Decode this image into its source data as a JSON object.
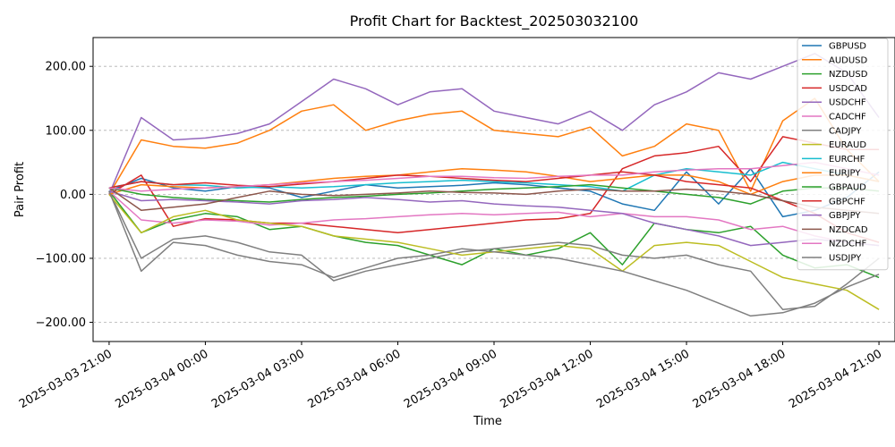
{
  "chart_data": {
    "type": "line",
    "title": "Profit Chart for Backtest_202503032100",
    "xlabel": "Time",
    "ylabel": "Pair Profit",
    "x_range_hours": [
      -0.5,
      24.5
    ],
    "ylim": [
      -230,
      245
    ],
    "yticks": [
      -200,
      -100,
      0,
      100,
      200
    ],
    "ytick_labels": [
      "−200.00",
      "−100.00",
      "0.00",
      "100.00",
      "200.00"
    ],
    "xticks_hours": [
      0,
      3,
      6,
      9,
      12,
      15,
      18,
      21,
      24
    ],
    "xtick_labels": [
      "2025-03-03 21:00",
      "2025-03-04 00:00",
      "2025-03-04 03:00",
      "2025-03-04 06:00",
      "2025-03-04 09:00",
      "2025-03-04 12:00",
      "2025-03-04 15:00",
      "2025-03-04 18:00",
      "2025-03-04 21:00"
    ],
    "grid": "horizontal dashed",
    "legend_position": "top-right",
    "x_hours": [
      0,
      1,
      2,
      3,
      4,
      5,
      6,
      7,
      8,
      9,
      10,
      11,
      12,
      13,
      14,
      15,
      16,
      17,
      18,
      19,
      20,
      21,
      22,
      23,
      24
    ],
    "series": [
      {
        "name": "GBPUSD",
        "color": "#1f77b4",
        "values": [
          5,
          25,
          10,
          5,
          12,
          10,
          -5,
          5,
          15,
          10,
          12,
          14,
          18,
          15,
          10,
          5,
          -15,
          -25,
          35,
          -15,
          40,
          -35,
          -25,
          -5,
          35
        ]
      },
      {
        "name": "AUDUSD",
        "color": "#ff7f0e",
        "values": [
          0,
          85,
          75,
          72,
          80,
          100,
          130,
          140,
          100,
          115,
          125,
          130,
          100,
          95,
          90,
          105,
          60,
          75,
          110,
          100,
          5,
          115,
          150,
          70,
          20
        ]
      },
      {
        "name": "NZDUSD",
        "color": "#2ca02c",
        "values": [
          5,
          -60,
          -40,
          -30,
          -35,
          -55,
          -50,
          -65,
          -75,
          -80,
          -95,
          -110,
          -85,
          -95,
          -85,
          -60,
          -110,
          -45,
          -55,
          -60,
          -50,
          -95,
          -115,
          -110,
          -130
        ]
      },
      {
        "name": "USDCAD",
        "color": "#d62728",
        "values": [
          0,
          30,
          -50,
          -38,
          -40,
          -45,
          -45,
          -50,
          -55,
          -60,
          -55,
          -50,
          -45,
          -40,
          -38,
          -30,
          40,
          60,
          65,
          75,
          20,
          90,
          80,
          70,
          70
        ]
      },
      {
        "name": "USDCHF",
        "color": "#9467bd",
        "values": [
          0,
          120,
          85,
          88,
          95,
          110,
          145,
          180,
          165,
          140,
          160,
          165,
          130,
          120,
          110,
          130,
          100,
          140,
          160,
          190,
          180,
          200,
          220,
          190,
          120
        ]
      },
      {
        "name": "CADCHF",
        "color": "#e377c2",
        "values": [
          5,
          -40,
          -45,
          -40,
          -42,
          -48,
          -45,
          -40,
          -38,
          -35,
          -32,
          -30,
          -32,
          -30,
          -28,
          -35,
          -30,
          -35,
          -35,
          -40,
          -55,
          -50,
          -65,
          -75,
          -80
        ]
      },
      {
        "name": "CADJPY",
        "color": "#7f7f7f",
        "values": [
          5,
          -100,
          -70,
          -65,
          -75,
          -90,
          -95,
          -135,
          -120,
          -110,
          -100,
          -90,
          -85,
          -80,
          -75,
          -80,
          -95,
          -100,
          -95,
          -110,
          -120,
          -180,
          -175,
          -140,
          -100
        ]
      },
      {
        "name": "EURAUD",
        "color": "#bcbd22",
        "values": [
          0,
          -60,
          -35,
          -25,
          -40,
          -45,
          -50,
          -65,
          -70,
          -75,
          -85,
          -95,
          -90,
          -85,
          -80,
          -85,
          -120,
          -80,
          -75,
          -80,
          -105,
          -130,
          -140,
          -150,
          -180
        ]
      },
      {
        "name": "EURCHF",
        "color": "#17becf",
        "values": [
          10,
          20,
          15,
          14,
          10,
          12,
          10,
          12,
          15,
          18,
          20,
          22,
          20,
          18,
          15,
          12,
          5,
          30,
          40,
          35,
          30,
          50,
          40,
          30,
          20
        ]
      },
      {
        "name": "EURJPY",
        "color": "#ff7f0e",
        "values": [
          0,
          15,
          12,
          10,
          12,
          15,
          20,
          25,
          28,
          30,
          35,
          40,
          38,
          35,
          28,
          20,
          25,
          30,
          30,
          20,
          0,
          20,
          30,
          30,
          20
        ]
      },
      {
        "name": "GBPAUD",
        "color": "#2ca02c",
        "values": [
          10,
          0,
          -5,
          -8,
          -10,
          -12,
          -8,
          -5,
          -3,
          0,
          2,
          5,
          8,
          10,
          12,
          15,
          10,
          5,
          0,
          -5,
          -15,
          5,
          10,
          10,
          5
        ]
      },
      {
        "name": "GBPCHF",
        "color": "#d62728",
        "values": [
          10,
          20,
          15,
          18,
          14,
          12,
          16,
          20,
          25,
          30,
          28,
          25,
          22,
          20,
          25,
          30,
          35,
          30,
          20,
          15,
          10,
          -10,
          -30,
          -60,
          -75
        ]
      },
      {
        "name": "GBPJPY",
        "color": "#9467bd",
        "values": [
          5,
          -10,
          -8,
          -10,
          -12,
          -15,
          -10,
          -8,
          -5,
          -8,
          -12,
          -10,
          -15,
          -18,
          -20,
          -25,
          -30,
          -45,
          -55,
          -65,
          -80,
          -75,
          -70,
          -75,
          -80
        ]
      },
      {
        "name": "NZDCAD",
        "color": "#8c564b",
        "values": [
          10,
          -25,
          -20,
          -15,
          -5,
          5,
          0,
          -2,
          0,
          2,
          5,
          3,
          2,
          0,
          5,
          8,
          5,
          5,
          8,
          5,
          0,
          -10,
          -20,
          -25,
          -30
        ]
      },
      {
        "name": "NZDCHF",
        "color": "#e377c2",
        "values": [
          10,
          5,
          8,
          10,
          12,
          15,
          18,
          20,
          22,
          25,
          28,
          28,
          26,
          25,
          28,
          30,
          30,
          35,
          38,
          40,
          40,
          45,
          50,
          40,
          30
        ]
      },
      {
        "name": "USDJPY",
        "color": "#7f7f7f",
        "values": [
          5,
          -120,
          -75,
          -80,
          -95,
          -105,
          -110,
          -130,
          -115,
          -100,
          -95,
          -85,
          -90,
          -95,
          -100,
          -110,
          -120,
          -135,
          -150,
          -170,
          -190,
          -185,
          -170,
          -145,
          -125
        ]
      }
    ]
  }
}
